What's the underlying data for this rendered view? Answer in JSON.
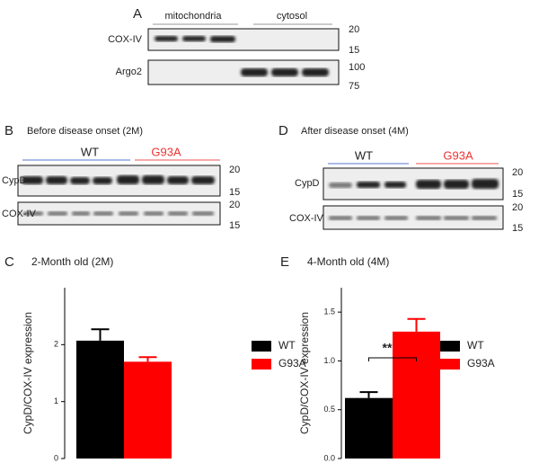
{
  "panel_a": {
    "label": "A",
    "lanes": [
      "mitochondria",
      "cytosol"
    ],
    "rows": [
      "COX-IV",
      "Argo2"
    ],
    "markers": [
      "20",
      "15",
      "100",
      "75"
    ]
  },
  "panel_b": {
    "label": "B",
    "title": "Before disease onset (2M)",
    "groups": [
      "WT",
      "G93A"
    ],
    "rows": [
      "CypD",
      "COX-IV"
    ],
    "markers": [
      "20",
      "15",
      "20",
      "15"
    ]
  },
  "panel_d": {
    "label": "D",
    "title": "After disease onset (4M)",
    "groups": [
      "WT",
      "G93A"
    ],
    "rows": [
      "CypD",
      "COX-IV"
    ],
    "markers": [
      "20",
      "15",
      "20",
      "15"
    ]
  },
  "chart_data": [
    {
      "type": "bar",
      "panel": "C",
      "title": "2-Month old (2M)",
      "ylabel": "CypD/COX-IV expression",
      "ylim": [
        0,
        3
      ],
      "yticks": [
        0,
        1,
        2
      ],
      "series": [
        {
          "name": "WT",
          "color": "#000000",
          "values": [
            2.07
          ],
          "errors": [
            0.2
          ]
        },
        {
          "name": "G93A",
          "color": "#ff0000",
          "values": [
            1.7
          ],
          "errors": [
            0.08
          ]
        }
      ]
    },
    {
      "type": "bar",
      "panel": "E",
      "title": "4-Month old (4M)",
      "ylabel": "CypD/COX-IV expression",
      "ylim": [
        0,
        1.75
      ],
      "yticks": [
        {
          "value": 0,
          "label": "0.0"
        },
        {
          "value": 0.5,
          "label": "0.5"
        },
        {
          "value": 1,
          "label": "1.0"
        },
        {
          "value": 1.5,
          "label": "1.5"
        }
      ],
      "annotation": "**",
      "series": [
        {
          "name": "WT",
          "color": "#000000",
          "values": [
            0.62
          ],
          "errors": [
            0.06
          ]
        },
        {
          "name": "G93A",
          "color": "#ff0000",
          "values": [
            1.3
          ],
          "errors": [
            0.13
          ]
        }
      ]
    }
  ]
}
